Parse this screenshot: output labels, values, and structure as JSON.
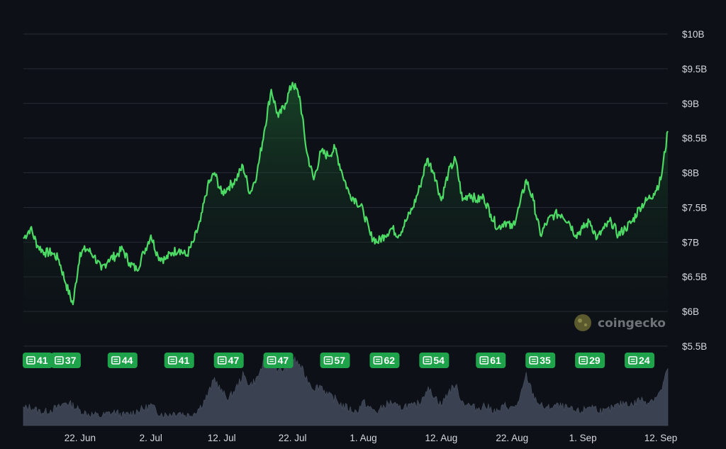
{
  "chart_data": {
    "type": "area",
    "ylim": [
      5.5,
      10
    ],
    "yticks": [
      "$10B",
      "$9.5B",
      "$9B",
      "$8.5B",
      "$8B",
      "$7.5B",
      "$7B",
      "$6.5B",
      "$6B",
      "$5.5B"
    ],
    "x_domain": [
      "2024-06-14",
      "2024-09-13"
    ],
    "xticks": [
      {
        "date": "2024-06-22",
        "label": "22. Jun"
      },
      {
        "date": "2024-07-02",
        "label": "2. Jul"
      },
      {
        "date": "2024-07-12",
        "label": "12. Jul"
      },
      {
        "date": "2024-07-22",
        "label": "22. Jul"
      },
      {
        "date": "2024-08-01",
        "label": "1. Aug"
      },
      {
        "date": "2024-08-12",
        "label": "12. Aug"
      },
      {
        "date": "2024-08-22",
        "label": "22. Aug"
      },
      {
        "date": "2024-09-01",
        "label": "1. Sep"
      },
      {
        "date": "2024-09-12",
        "label": "12. Sep"
      }
    ],
    "series": [
      {
        "x": [
          "2024-06-14",
          "2024-06-15",
          "2024-06-16",
          "2024-06-17",
          "2024-06-18",
          "2024-06-19",
          "2024-06-20",
          "2024-06-21",
          "2024-06-22",
          "2024-06-23",
          "2024-06-24",
          "2024-06-25",
          "2024-06-26",
          "2024-06-27",
          "2024-06-28",
          "2024-06-29",
          "2024-06-30",
          "2024-07-01",
          "2024-07-02",
          "2024-07-03",
          "2024-07-04",
          "2024-07-05",
          "2024-07-06",
          "2024-07-07",
          "2024-07-08",
          "2024-07-09",
          "2024-07-10",
          "2024-07-11",
          "2024-07-12",
          "2024-07-13",
          "2024-07-14",
          "2024-07-15",
          "2024-07-16",
          "2024-07-17",
          "2024-07-18",
          "2024-07-19",
          "2024-07-20",
          "2024-07-21",
          "2024-07-22",
          "2024-07-23",
          "2024-07-24",
          "2024-07-25",
          "2024-07-26",
          "2024-07-27",
          "2024-07-28",
          "2024-07-29",
          "2024-07-30",
          "2024-07-31",
          "2024-08-01",
          "2024-08-02",
          "2024-08-03",
          "2024-08-04",
          "2024-08-05",
          "2024-08-06",
          "2024-08-07",
          "2024-08-08",
          "2024-08-09",
          "2024-08-10",
          "2024-08-11",
          "2024-08-12",
          "2024-08-13",
          "2024-08-14",
          "2024-08-15",
          "2024-08-16",
          "2024-08-17",
          "2024-08-18",
          "2024-08-19",
          "2024-08-20",
          "2024-08-21",
          "2024-08-22",
          "2024-08-23",
          "2024-08-24",
          "2024-08-25",
          "2024-08-26",
          "2024-08-27",
          "2024-08-28",
          "2024-08-29",
          "2024-08-30",
          "2024-08-31",
          "2024-09-01",
          "2024-09-02",
          "2024-09-03",
          "2024-09-04",
          "2024-09-05",
          "2024-09-06",
          "2024-09-07",
          "2024-09-08",
          "2024-09-09",
          "2024-09-10",
          "2024-09-11",
          "2024-09-12",
          "2024-09-13"
        ],
        "y": [
          7.05,
          7.2,
          6.95,
          6.85,
          6.85,
          6.75,
          6.4,
          6.1,
          6.85,
          6.9,
          6.8,
          6.6,
          6.75,
          6.8,
          6.9,
          6.7,
          6.6,
          6.85,
          7.1,
          6.8,
          6.75,
          6.85,
          6.9,
          6.8,
          7.0,
          7.3,
          7.8,
          8.0,
          7.7,
          7.8,
          7.9,
          8.1,
          7.7,
          8.0,
          8.6,
          9.2,
          8.8,
          9.0,
          9.3,
          9.1,
          8.3,
          7.9,
          8.3,
          8.25,
          8.35,
          8.0,
          7.7,
          7.6,
          7.45,
          7.1,
          7.0,
          7.1,
          7.2,
          7.1,
          7.3,
          7.5,
          7.8,
          8.2,
          8.0,
          7.6,
          8.0,
          8.2,
          7.6,
          7.7,
          7.6,
          7.65,
          7.4,
          7.2,
          7.3,
          7.2,
          7.5,
          7.9,
          7.6,
          7.1,
          7.3,
          7.4,
          7.4,
          7.3,
          7.1,
          7.2,
          7.3,
          7.05,
          7.2,
          7.3,
          7.1,
          7.2,
          7.3,
          7.5,
          7.6,
          7.7,
          7.9,
          8.6
        ]
      }
    ],
    "volume": [
      0.25,
      0.28,
      0.22,
      0.2,
      0.24,
      0.27,
      0.35,
      0.3,
      0.22,
      0.18,
      0.16,
      0.14,
      0.18,
      0.2,
      0.15,
      0.17,
      0.22,
      0.25,
      0.3,
      0.2,
      0.16,
      0.18,
      0.2,
      0.15,
      0.18,
      0.28,
      0.45,
      0.7,
      0.5,
      0.4,
      0.55,
      0.75,
      0.6,
      0.7,
      0.95,
      1.05,
      0.8,
      0.85,
      1.0,
      0.9,
      0.7,
      0.55,
      0.6,
      0.45,
      0.4,
      0.3,
      0.25,
      0.2,
      0.35,
      0.25,
      0.2,
      0.3,
      0.35,
      0.25,
      0.3,
      0.28,
      0.35,
      0.55,
      0.45,
      0.3,
      0.5,
      0.6,
      0.35,
      0.3,
      0.25,
      0.3,
      0.25,
      0.2,
      0.3,
      0.25,
      0.35,
      0.75,
      0.45,
      0.3,
      0.25,
      0.3,
      0.28,
      0.25,
      0.2,
      0.22,
      0.3,
      0.25,
      0.2,
      0.25,
      0.3,
      0.35,
      0.3,
      0.4,
      0.35,
      0.4,
      0.5,
      0.85
    ],
    "news_badges": [
      {
        "date": "2024-06-16",
        "count": "41"
      },
      {
        "date": "2024-06-20",
        "count": "37"
      },
      {
        "date": "2024-06-28",
        "count": "44"
      },
      {
        "date": "2024-07-06",
        "count": "41"
      },
      {
        "date": "2024-07-13",
        "count": "47"
      },
      {
        "date": "2024-07-20",
        "count": "47"
      },
      {
        "date": "2024-07-28",
        "count": "57"
      },
      {
        "date": "2024-08-04",
        "count": "62"
      },
      {
        "date": "2024-08-11",
        "count": "54"
      },
      {
        "date": "2024-08-19",
        "count": "61"
      },
      {
        "date": "2024-08-26",
        "count": "35"
      },
      {
        "date": "2024-09-02",
        "count": "29"
      },
      {
        "date": "2024-09-09",
        "count": "24"
      }
    ],
    "colors": {
      "line": "#4cd964",
      "badge": "#1fa34a",
      "grid": "#262b33",
      "volume": "#3a4150"
    },
    "grid": true
  },
  "watermark": {
    "text": "coingecko",
    "icon": "coingecko-logo-icon"
  },
  "news_icon": "newspaper-icon"
}
